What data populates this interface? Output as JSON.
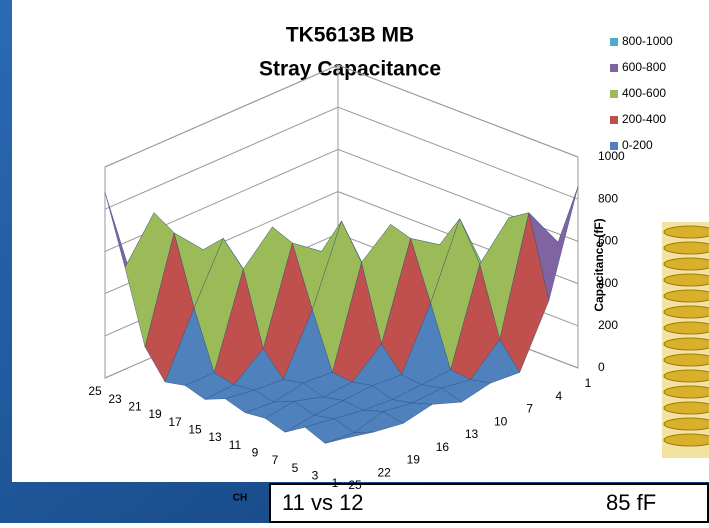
{
  "chart_data": {
    "type": "surface",
    "title": "TK5613B MB",
    "subtitle": "Stray Capacitance",
    "x_label": "CH",
    "z_label": "Capacitance (fF)",
    "categories": [
      "25",
      "23",
      "21",
      "19",
      "17",
      "15",
      "13",
      "11",
      "9",
      "7",
      "5",
      "3",
      "1"
    ],
    "series": [
      {
        "name": "25",
        "values": [
          880,
          560,
          220,
          90,
          110,
          80,
          120,
          90,
          100,
          70,
          130,
          90,
          150
        ]
      },
      {
        "name": "22",
        "values": [
          380,
          760,
          700,
          380,
          110,
          90,
          100,
          80,
          120,
          90,
          110,
          80,
          120
        ]
      },
      {
        "name": "19",
        "values": [
          100,
          220,
          560,
          650,
          540,
          200,
          90,
          110,
          80,
          100,
          90,
          120,
          100
        ]
      },
      {
        "name": "16",
        "values": [
          120,
          90,
          110,
          380,
          680,
          640,
          360,
          100,
          90,
          110,
          80,
          100,
          130
        ]
      },
      {
        "name": "13",
        "values": [
          90,
          110,
          80,
          100,
          220,
          540,
          720,
          560,
          210,
          100,
          90,
          110,
          80
        ]
      },
      {
        "name": "10",
        "values": [
          100,
          80,
          120,
          90,
          100,
          110,
          380,
          680,
          650,
          380,
          100,
          90,
          110
        ]
      },
      {
        "name": "7",
        "values": [
          130,
          90,
          110,
          80,
          100,
          90,
          110,
          220,
          560,
          720,
          540,
          220,
          100
        ]
      },
      {
        "name": "4",
        "values": [
          110,
          120,
          90,
          100,
          80,
          110,
          90,
          100,
          110,
          380,
          700,
          760,
          380
        ]
      },
      {
        "name": "1",
        "values": [
          150,
          100,
          110,
          90,
          120,
          80,
          100,
          90,
          110,
          100,
          220,
          560,
          860
        ]
      }
    ],
    "bands": [
      {
        "name": "800-1000",
        "color": "#4bacc6"
      },
      {
        "name": "600-800",
        "color": "#8064a2"
      },
      {
        "name": "400-600",
        "color": "#9bbb59"
      },
      {
        "name": "200-400",
        "color": "#c0504d"
      },
      {
        "name": "0-200",
        "color": "#4f81bd"
      }
    ],
    "zlim": [
      0,
      1000
    ],
    "zticks": [
      0,
      200,
      400,
      600,
      800,
      1000
    ],
    "grid": true
  },
  "table": {
    "rows": [
      [
        "11 vs 12",
        "85 fF"
      ]
    ]
  }
}
